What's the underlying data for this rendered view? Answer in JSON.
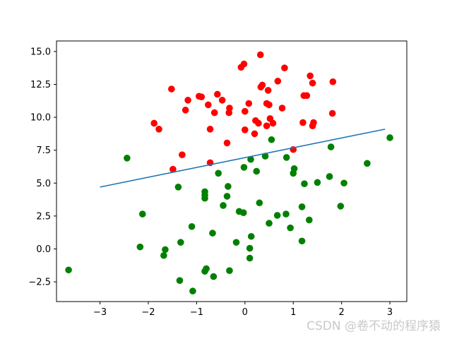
{
  "chart_data": {
    "type": "scatter",
    "title": "",
    "xlabel": "",
    "ylabel": "",
    "xlim": [
      -3.9,
      3.35
    ],
    "ylim": [
      -4.0,
      15.8
    ],
    "x_ticks": [
      -3,
      -2,
      -1,
      0,
      1,
      2,
      3
    ],
    "x_tick_labels": [
      "−3",
      "−2",
      "−1",
      "0",
      "1",
      "2",
      "3"
    ],
    "y_ticks": [
      -2.5,
      0.0,
      2.5,
      5.0,
      7.5,
      10.0,
      12.5,
      15.0
    ],
    "y_tick_labels": [
      "−2.5",
      "0.0",
      "2.5",
      "5.0",
      "7.5",
      "10.0",
      "12.5",
      "15.0"
    ],
    "grid": false,
    "series": [
      {
        "color": "#ff0000",
        "points": [
          [
            0.32,
            14.75
          ],
          [
            -0.02,
            14.05
          ],
          [
            -0.08,
            13.8
          ],
          [
            0.82,
            13.75
          ],
          [
            1.35,
            13.15
          ],
          [
            1.82,
            12.7
          ],
          [
            1.4,
            12.6
          ],
          [
            0.68,
            12.75
          ],
          [
            0.36,
            12.45
          ],
          [
            0.33,
            12.3
          ],
          [
            -1.52,
            12.15
          ],
          [
            0.48,
            12.05
          ],
          [
            -0.57,
            11.75
          ],
          [
            -0.47,
            11.3
          ],
          [
            -1.18,
            11.3
          ],
          [
            -0.95,
            11.6
          ],
          [
            -0.9,
            11.55
          ],
          [
            1.22,
            11.65
          ],
          [
            1.28,
            11.65
          ],
          [
            0.08,
            11.05
          ],
          [
            0.45,
            11.05
          ],
          [
            0.5,
            10.95
          ],
          [
            -0.76,
            10.95
          ],
          [
            -0.32,
            10.7
          ],
          [
            0.77,
            10.7
          ],
          [
            -1.23,
            10.55
          ],
          [
            -0.63,
            10.35
          ],
          [
            -0.33,
            10.35
          ],
          [
            0.0,
            10.45
          ],
          [
            1.81,
            10.3
          ],
          [
            0.52,
            9.9
          ],
          [
            0.58,
            9.55
          ],
          [
            0.22,
            9.75
          ],
          [
            0.45,
            9.35
          ],
          [
            0.28,
            9.55
          ],
          [
            1.2,
            9.6
          ],
          [
            1.4,
            9.35
          ],
          [
            1.42,
            9.6
          ],
          [
            -1.88,
            9.55
          ],
          [
            -1.78,
            9.1
          ],
          [
            -0.72,
            9.1
          ],
          [
            0.0,
            9.05
          ],
          [
            0.2,
            8.75
          ],
          [
            -0.37,
            8.05
          ],
          [
            -1.3,
            7.15
          ],
          [
            1.0,
            7.55
          ],
          [
            -0.72,
            6.55
          ],
          [
            -1.49,
            6.05
          ]
        ]
      },
      {
        "color": "#008000",
        "points": [
          [
            3.0,
            8.45
          ],
          [
            0.55,
            8.3
          ],
          [
            1.78,
            7.75
          ],
          [
            0.42,
            7.05
          ],
          [
            0.86,
            6.95
          ],
          [
            -2.44,
            6.9
          ],
          [
            0.12,
            6.8
          ],
          [
            2.53,
            6.5
          ],
          [
            -0.02,
            6.2
          ],
          [
            1.02,
            6.1
          ],
          [
            0.24,
            5.9
          ],
          [
            -0.55,
            5.75
          ],
          [
            1.0,
            5.75
          ],
          [
            1.75,
            5.5
          ],
          [
            1.5,
            5.05
          ],
          [
            1.23,
            4.95
          ],
          [
            2.05,
            5.0
          ],
          [
            -0.35,
            4.75
          ],
          [
            -1.38,
            4.7
          ],
          [
            -0.83,
            4.35
          ],
          [
            -0.83,
            4.1
          ],
          [
            -0.83,
            3.85
          ],
          [
            -0.37,
            4.0
          ],
          [
            0.3,
            3.5
          ],
          [
            -0.45,
            3.3
          ],
          [
            1.18,
            3.2
          ],
          [
            1.98,
            3.25
          ],
          [
            -0.12,
            2.85
          ],
          [
            -0.03,
            2.75
          ],
          [
            0.85,
            2.65
          ],
          [
            0.67,
            2.55
          ],
          [
            -2.12,
            2.65
          ],
          [
            1.33,
            2.2
          ],
          [
            0.5,
            1.95
          ],
          [
            -1.1,
            1.7
          ],
          [
            0.94,
            1.6
          ],
          [
            -0.67,
            1.2
          ],
          [
            0.13,
            0.95
          ],
          [
            1.18,
            0.6
          ],
          [
            -1.33,
            0.5
          ],
          [
            -0.18,
            0.5
          ],
          [
            -2.17,
            0.15
          ],
          [
            0.1,
            0.05
          ],
          [
            -1.65,
            -0.05
          ],
          [
            -1.68,
            -0.5
          ],
          [
            0.1,
            -0.7
          ],
          [
            -0.8,
            -1.5
          ],
          [
            -0.83,
            -1.7
          ],
          [
            -3.65,
            -1.6
          ],
          [
            -0.32,
            -1.65
          ],
          [
            -0.65,
            -2.1
          ],
          [
            -1.35,
            -2.4
          ],
          [
            -1.08,
            -3.2
          ]
        ]
      },
      {
        "type": "line",
        "color": "#1f77b4",
        "points": [
          [
            -3.0,
            4.7
          ],
          [
            2.9,
            9.1
          ]
        ]
      }
    ],
    "watermark": "CSDN @卷不动的程序猿"
  }
}
